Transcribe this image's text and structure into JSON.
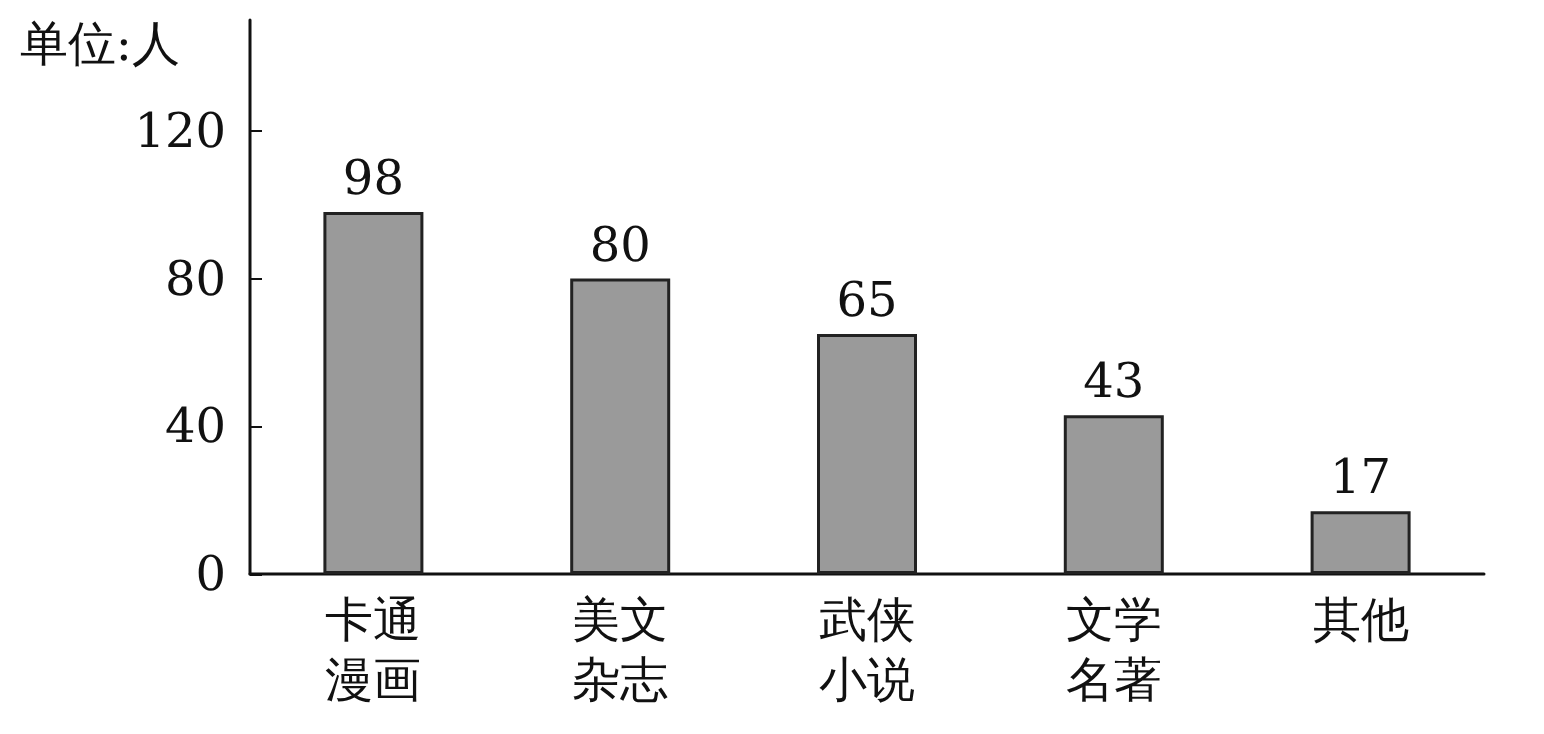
{
  "chart_data": {
    "type": "bar",
    "ylabel": "单位:人",
    "categories": [
      "卡通漫画",
      "美文杂志",
      "武侠小说",
      "文学名著",
      "其他"
    ],
    "values": [
      98,
      80,
      65,
      43,
      17
    ],
    "color": "#9a9a9a",
    "ylim": [
      0,
      150
    ],
    "yticks": [
      0,
      40,
      80,
      120
    ],
    "grid": false,
    "data_labels": true
  }
}
